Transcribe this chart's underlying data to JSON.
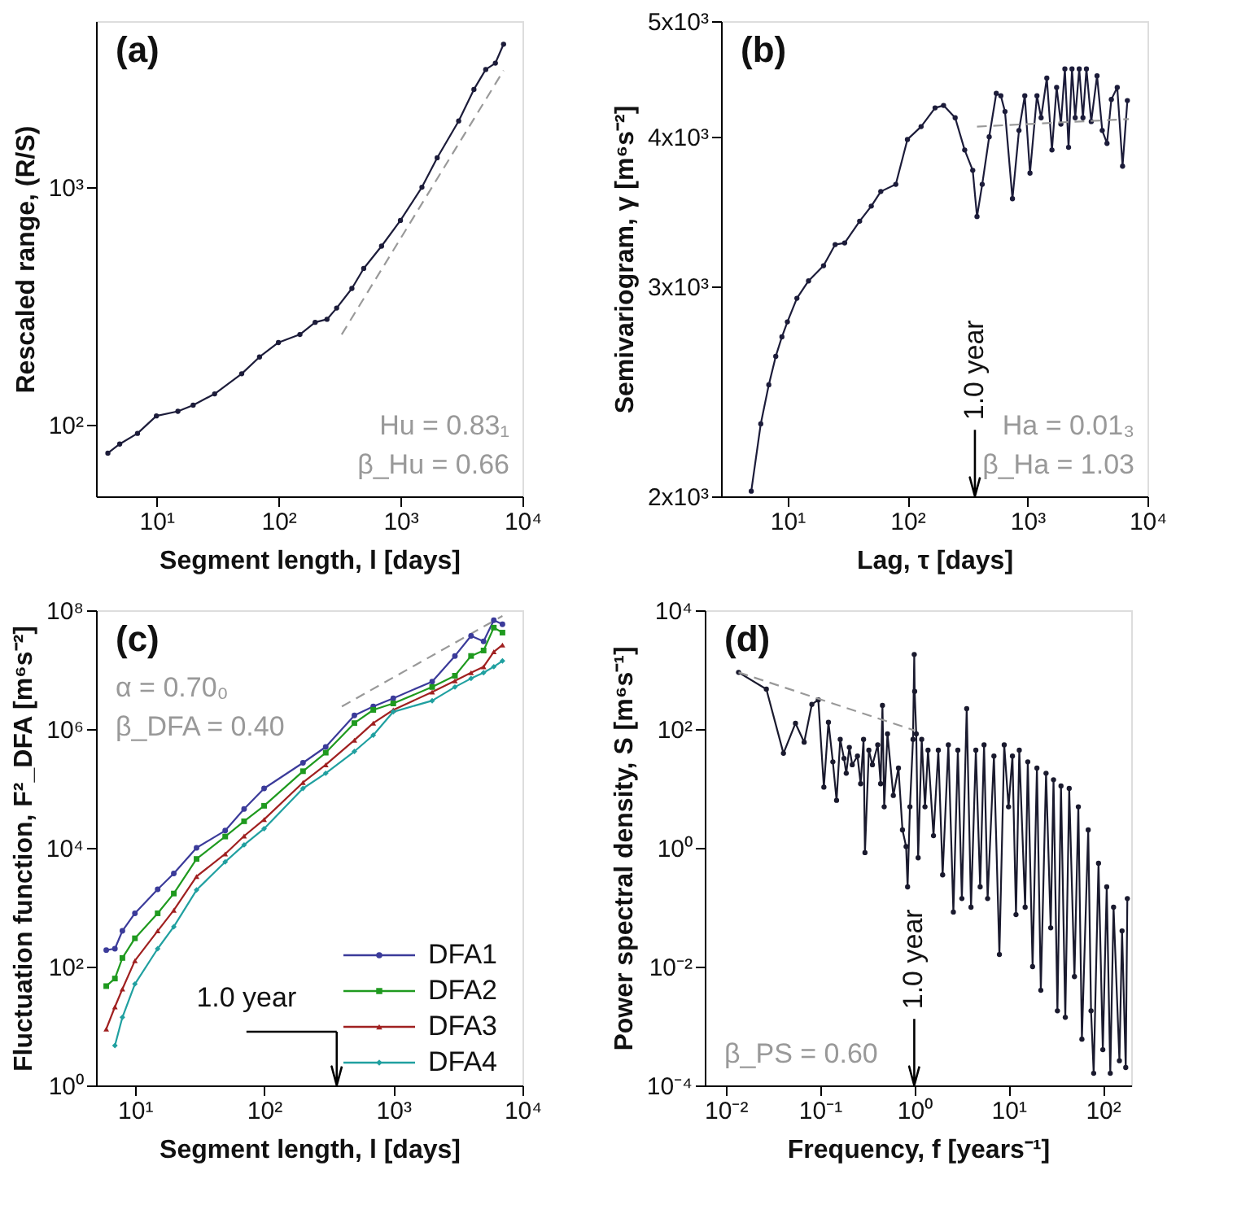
{
  "chart_data": [
    {
      "type": "line",
      "title": "(a)",
      "xlabel": "Segment length, l [days]",
      "ylabel": "Rescaled range, (R/S)",
      "log": "xy",
      "grid": false,
      "xlim": [
        3.2,
        10000
      ],
      "ylim": [
        50,
        5000
      ],
      "xticks": [
        {
          "value": 10,
          "label": "10¹"
        },
        {
          "value": 100,
          "label": "10²"
        },
        {
          "value": 1000,
          "label": "10³"
        },
        {
          "value": 10000,
          "label": "10⁴"
        }
      ],
      "yticks": [
        {
          "value": 100,
          "label": "10²"
        },
        {
          "value": 1000,
          "label": "10³"
        }
      ],
      "annotations": [
        "Hu = 0.83₁",
        "β_Hu = 0.66"
      ],
      "series": [
        {
          "color": "#1c1c3a",
          "marker": "circle",
          "x": [
            4,
            5,
            7,
            10,
            15,
            20,
            30,
            50,
            70,
            100,
            150,
            200,
            250,
            300,
            400,
            500,
            700,
            1000,
            1500,
            2000,
            3000,
            4000,
            5000,
            6000,
            7000
          ],
          "values": [
            76,
            83,
            92,
            109,
            114,
            121,
            135,
            164,
            193,
            222,
            240,
            270,
            278,
            310,
            375,
            455,
            565,
            725,
            1000,
            1330,
            1900,
            2580,
            3130,
            3330,
            4000
          ]
        },
        {
          "color": "#999999",
          "marker": "none",
          "line_style": "dashed",
          "x": [
            330,
            7000
          ],
          "values": [
            240,
            3100
          ]
        }
      ]
    },
    {
      "type": "line",
      "title": "(b)",
      "xlabel": "Lag, τ [days]",
      "ylabel": "Semivariogram, γ [m⁶s⁻²]",
      "log": "xy",
      "grid": false,
      "xlim": [
        2.8,
        10000
      ],
      "ylim": [
        2000,
        5000
      ],
      "xticks": [
        {
          "value": 10,
          "label": "10¹"
        },
        {
          "value": 100,
          "label": "10²"
        },
        {
          "value": 1000,
          "label": "10³"
        },
        {
          "value": 10000,
          "label": "10⁴"
        }
      ],
      "yticks": [
        {
          "value": 2000,
          "label": "2x10³"
        },
        {
          "value": 3000,
          "label": "3x10³"
        },
        {
          "value": 4000,
          "label": "4x10³"
        },
        {
          "value": 5000,
          "label": "5x10³"
        }
      ],
      "annotations": [
        "Ha = 0.01₃",
        "β_Ha = 1.03"
      ],
      "ref_lines": [
        {
          "axis": "x",
          "value": 365,
          "label": "1.0 year"
        }
      ],
      "series": [
        {
          "color": "#1c1c3a",
          "marker": "circle",
          "x": [
            5,
            6,
            7,
            8,
            9,
            10,
            12,
            15,
            20,
            25,
            30,
            40,
            50,
            60,
            80,
            100,
            130,
            170,
            200,
            250,
            300,
            350,
            380,
            420,
            480,
            550,
            600,
            650,
            750,
            850,
            950,
            1050,
            1200,
            1300,
            1450,
            1600,
            1750,
            1900,
            2050,
            2200,
            2350,
            2500,
            2700,
            2900,
            3100,
            3400,
            3800,
            4200,
            4600,
            5000,
            5600,
            6200,
            6800
          ],
          "values": [
            2020,
            2300,
            2480,
            2620,
            2720,
            2800,
            2930,
            3030,
            3120,
            3250,
            3260,
            3400,
            3500,
            3600,
            3650,
            3980,
            4080,
            4230,
            4250,
            4150,
            3900,
            3750,
            3430,
            3650,
            4000,
            4350,
            4330,
            4200,
            3550,
            4050,
            4330,
            3730,
            4330,
            4150,
            4480,
            3900,
            4400,
            4100,
            4560,
            3920,
            4560,
            4150,
            4560,
            4150,
            4560,
            4120,
            4500,
            4050,
            3950,
            4300,
            4400,
            3780,
            4290
          ]
        },
        {
          "color": "#999999",
          "marker": "none",
          "line_style": "dashed",
          "x": [
            380,
            7000
          ],
          "values": [
            4080,
            4140
          ]
        }
      ]
    },
    {
      "type": "line",
      "title": "(c)",
      "xlabel": "Segment length, l [days]",
      "ylabel": "Fluctuation function, F²_DFA [m⁶s⁻²]",
      "log": "xy",
      "grid": false,
      "legend": "bottom right",
      "xlim": [
        5,
        10000
      ],
      "ylim": [
        1,
        100000000
      ],
      "xticks": [
        {
          "value": 10,
          "label": "10¹"
        },
        {
          "value": 100,
          "label": "10²"
        },
        {
          "value": 1000,
          "label": "10³"
        },
        {
          "value": 10000,
          "label": "10⁴"
        }
      ],
      "yticks": [
        {
          "value": 1,
          "label": "10⁰"
        },
        {
          "value": 100,
          "label": "10²"
        },
        {
          "value": 10000,
          "label": "10⁴"
        },
        {
          "value": 1000000,
          "label": "10⁶"
        },
        {
          "value": 100000000,
          "label": "10⁸"
        }
      ],
      "annotations": [
        "α       = 0.70₀",
        "β_DFA = 0.40"
      ],
      "ref_lines": [
        {
          "axis": "x",
          "value": 365,
          "label": "1.0 year"
        }
      ],
      "series": [
        {
          "name": "DFA1",
          "color": "#3b3b9a",
          "marker": "circle",
          "x": [
            6,
            7,
            8,
            10,
            15,
            20,
            30,
            50,
            70,
            100,
            200,
            300,
            500,
            700,
            1000,
            2000,
            3000,
            4000,
            5000,
            6000,
            7000
          ],
          "values": [
            190,
            200,
            400,
            790,
            2000,
            3700,
            10000,
            19500,
            45000,
            100000,
            270000,
            500000,
            1700000,
            2400000,
            3300000,
            6300000,
            17000000,
            37000000,
            30000000,
            68000000,
            58000000
          ]
        },
        {
          "name": "DFA2",
          "color": "#1f9a1f",
          "marker": "square",
          "x": [
            6,
            7,
            8,
            10,
            15,
            20,
            30,
            50,
            70,
            100,
            200,
            300,
            500,
            700,
            1000,
            2000,
            3000,
            4000,
            5000,
            6000,
            7000
          ],
          "values": [
            47,
            63,
            140,
            300,
            790,
            1700,
            6500,
            15500,
            28000,
            51000,
            195000,
            400000,
            1260000,
            2100000,
            2700000,
            5100000,
            7900000,
            17000000,
            21000000,
            51000000,
            42000000
          ]
        },
        {
          "name": "DFA3",
          "color": "#a02020",
          "marker": "triangle",
          "x": [
            6,
            7,
            8,
            10,
            15,
            20,
            30,
            50,
            70,
            100,
            200,
            300,
            500,
            700,
            1000,
            2000,
            3000,
            4000,
            5000,
            6000,
            7000
          ],
          "values": [
            8.9,
            21,
            42,
            126,
            400,
            890,
            3300,
            7900,
            15800,
            30000,
            126000,
            250000,
            650000,
            1260000,
            2100000,
            4200000,
            6500000,
            8900000,
            11200000,
            20000000,
            26000000
          ]
        },
        {
          "name": "DFA4",
          "color": "#20a0a0",
          "marker": "diamond",
          "x": [
            7,
            8,
            10,
            15,
            20,
            30,
            50,
            70,
            100,
            200,
            300,
            500,
            700,
            1000,
            2000,
            3000,
            4000,
            5000,
            6000,
            7000
          ],
          "values": [
            4.7,
            14,
            51,
            200,
            470,
            1950,
            5800,
            11200,
            21000,
            100000,
            180000,
            420000,
            790000,
            1950000,
            3000000,
            5100000,
            7100000,
            8900000,
            11200000,
            14000000
          ]
        },
        {
          "color": "#999999",
          "marker": "none",
          "line_style": "dashed",
          "x": [
            400,
            7000
          ],
          "values": [
            2400000,
            80000000
          ]
        }
      ]
    },
    {
      "type": "line",
      "title": "(d)",
      "xlabel": "Frequency, f [years⁻¹]",
      "ylabel": "Power spectral density, S [m⁶s⁻¹]",
      "log": "xy",
      "grid": false,
      "xlim": [
        0.006,
        200
      ],
      "ylim": [
        0.0001,
        10000
      ],
      "xticks": [
        {
          "value": 0.01,
          "label": "10⁻²"
        },
        {
          "value": 0.1,
          "label": "10⁻¹"
        },
        {
          "value": 1,
          "label": "10⁰"
        },
        {
          "value": 10,
          "label": "10¹"
        },
        {
          "value": 100,
          "label": "10²"
        }
      ],
      "yticks": [
        {
          "value": 0.0001,
          "label": "10⁻⁴"
        },
        {
          "value": 0.01,
          "label": "10⁻²"
        },
        {
          "value": 1,
          "label": "10⁰"
        },
        {
          "value": 100,
          "label": "10²"
        },
        {
          "value": 10000,
          "label": "10⁴"
        }
      ],
      "annotations": [
        "β_PS = 0.60"
      ],
      "ref_lines": [
        {
          "axis": "x",
          "value": 1,
          "label": "1.0 year"
        }
      ],
      "series": [
        {
          "color": "#1a1a2e",
          "marker": "circle",
          "x": [
            0.0137,
            0.027,
            0.041,
            0.055,
            0.068,
            0.082,
            0.096,
            0.11,
            0.123,
            0.137,
            0.15,
            0.164,
            0.18,
            0.19,
            0.205,
            0.22,
            0.25,
            0.27,
            0.29,
            0.3,
            0.33,
            0.36,
            0.41,
            0.44,
            0.46,
            0.48,
            0.52,
            0.6,
            0.68,
            0.75,
            0.82,
            0.85,
            0.9,
            0.97,
            1.0,
            1.01,
            1.05,
            1.1,
            1.2,
            1.3,
            1.4,
            1.6,
            1.8,
            2.0,
            2.3,
            2.6,
            2.9,
            3.2,
            3.6,
            4.0,
            4.5,
            5.0,
            5.5,
            6.0,
            7,
            8,
            9,
            10,
            11,
            12,
            13,
            15,
            16,
            18,
            20,
            22,
            25,
            28,
            30,
            33,
            36,
            40,
            44,
            50,
            55,
            60,
            70,
            75,
            80,
            90,
            100,
            110,
            120,
            130,
            150,
            160,
            175,
            182
          ],
          "values": [
            900,
            470,
            39,
            125,
            60,
            260,
            310,
            10.5,
            130,
            28,
            6.3,
            67,
            32,
            18,
            49,
            25,
            35,
            12,
            67,
            0.83,
            44,
            25,
            54,
            12,
            250,
            4.9,
            83,
            7.6,
            22,
            2,
            1.05,
            0.22,
            4.9,
            67,
            1800,
            430,
            83,
            0.68,
            67,
            4.9,
            44,
            1.6,
            44,
            0.35,
            54,
            0.083,
            44,
            0.14,
            220,
            0.1,
            44,
            0.22,
            54,
            0.14,
            35,
            0.016,
            54,
            4.9,
            35,
            0.075,
            44,
            0.1,
            28,
            0.01,
            22,
            0.004,
            18,
            0.045,
            14,
            0.0018,
            11,
            0.0014,
            10,
            0.0068,
            4.9,
            0.0006,
            2,
            0.0018,
            0.00016,
            0.55,
            0.0004,
            0.22,
            0.00016,
            0.1,
            0.00026,
            0.04,
            0.0002,
            0.14
          ]
        },
        {
          "color": "#999999",
          "marker": "none",
          "line_style": "dashed",
          "x": [
            0.0137,
            1.0
          ],
          "values": [
            900,
            95
          ]
        }
      ]
    }
  ]
}
